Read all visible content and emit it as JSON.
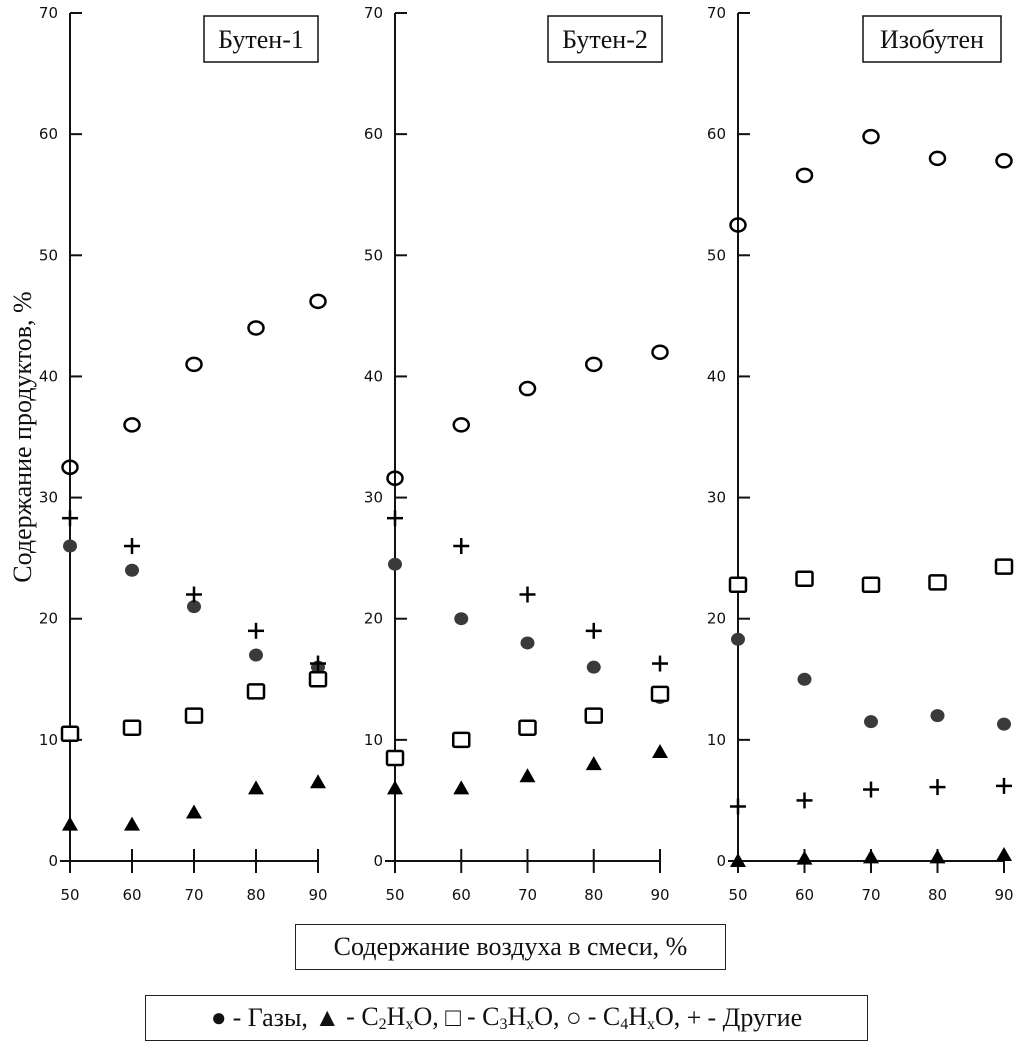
{
  "chart_data": {
    "type": "scatter",
    "ylabel": "Содержание продуктов, %",
    "xlabel": "Содержание воздуха в смеси, %",
    "x": [
      50,
      60,
      70,
      80,
      90
    ],
    "xticks": [
      "50",
      "60",
      "70",
      "80",
      "90"
    ],
    "yticks": [
      "0",
      "10",
      "20",
      "30",
      "40",
      "50",
      "60",
      "70"
    ],
    "ylim": [
      0,
      70
    ],
    "xlim": [
      50,
      90
    ],
    "grid": false,
    "legend_position": "bottom",
    "legend": [
      {
        "marker": "filled-circle",
        "label": "Газы"
      },
      {
        "marker": "filled-triangle",
        "label": "C2HxO"
      },
      {
        "marker": "open-square",
        "label": "C3HxO"
      },
      {
        "marker": "open-circle",
        "label": "C4HxO"
      },
      {
        "marker": "plus",
        "label": "Другие"
      }
    ],
    "panels": [
      {
        "title": "Бутен-1",
        "series": [
          {
            "name": "Газы",
            "marker": "filled-circle",
            "values": [
              26,
              24,
              21,
              17,
              16
            ]
          },
          {
            "name": "C2HxO",
            "marker": "filled-triangle",
            "values": [
              3,
              3,
              4,
              6,
              6.5
            ]
          },
          {
            "name": "C3HxO",
            "marker": "open-square",
            "values": [
              10.5,
              11,
              12,
              14,
              15
            ]
          },
          {
            "name": "C4HxO",
            "marker": "open-circle",
            "values": [
              32.5,
              36,
              41,
              44,
              46.2
            ]
          },
          {
            "name": "Другие",
            "marker": "plus",
            "values": [
              28.3,
              26,
              22,
              19,
              16.3
            ]
          }
        ]
      },
      {
        "title": "Бутен-2",
        "series": [
          {
            "name": "Газы",
            "marker": "filled-circle",
            "values": [
              24.5,
              20,
              18,
              16,
              13.5
            ]
          },
          {
            "name": "C2HxO",
            "marker": "filled-triangle",
            "values": [
              6,
              6,
              7,
              8,
              9
            ]
          },
          {
            "name": "C3HxO",
            "marker": "open-square",
            "values": [
              8.5,
              10,
              11,
              12,
              13.8
            ]
          },
          {
            "name": "C4HxO",
            "marker": "open-circle",
            "values": [
              31.6,
              36,
              39,
              41,
              42
            ]
          },
          {
            "name": "Другие",
            "marker": "plus",
            "values": [
              28.3,
              26,
              22,
              19,
              16.3
            ]
          }
        ]
      },
      {
        "title": "Изобутен",
        "series": [
          {
            "name": "Газы",
            "marker": "filled-circle",
            "values": [
              18.3,
              15,
              11.5,
              12,
              11.3
            ]
          },
          {
            "name": "C2HxO",
            "marker": "filled-triangle",
            "values": [
              0,
              0.2,
              0.3,
              0.3,
              0.5
            ]
          },
          {
            "name": "C3HxO",
            "marker": "open-square",
            "values": [
              22.8,
              23.3,
              22.8,
              23,
              24.3
            ]
          },
          {
            "name": "C4HxO",
            "marker": "open-circle",
            "values": [
              52.5,
              56.6,
              59.8,
              58,
              57.8
            ]
          },
          {
            "name": "Другие",
            "marker": "plus",
            "values": [
              4.5,
              5,
              5.9,
              6.1,
              6.2
            ]
          }
        ]
      }
    ]
  },
  "xlabel_box": "Содержание воздуха в смеси, %",
  "legend_text": {
    "gases": "- Газы,",
    "c2_pre": "- C",
    "c2_sub": "2",
    "c2_mid": "H",
    "c2_subx": "x",
    "c2_post": "O,",
    "c3_pre": "- C",
    "c3_sub": "3",
    "c3_mid": "H",
    "c3_subx": "x",
    "c3_post": "O,",
    "c4_pre": "- C",
    "c4_sub": "4",
    "c4_mid": "H",
    "c4_subx": "x",
    "c4_post": "O,",
    "other": "- Другие"
  },
  "colors": {
    "axis": "#111111",
    "gas_fill": "#3a3a3a",
    "marker": "#000000"
  }
}
